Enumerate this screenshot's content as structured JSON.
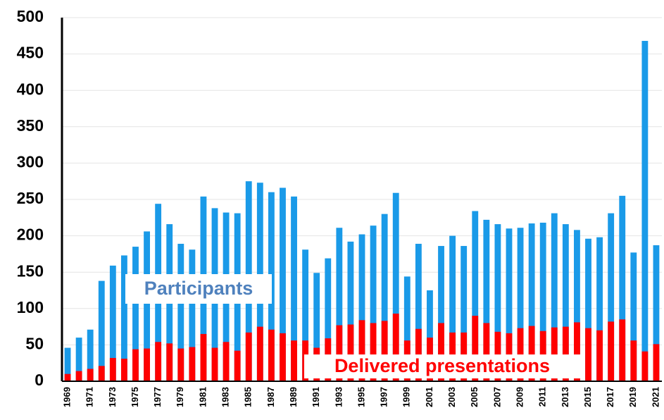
{
  "chart_data": {
    "type": "bar",
    "overlap": true,
    "categories": [
      "1969",
      null,
      "1971",
      null,
      "1973",
      null,
      "1975",
      null,
      "1977",
      null,
      "1979",
      null,
      "1981",
      null,
      "1983",
      null,
      "1985",
      null,
      "1987",
      null,
      "1989",
      null,
      "1991",
      null,
      "1993",
      null,
      "1995",
      null,
      "1997",
      null,
      "1999",
      null,
      "2001",
      null,
      "2003",
      null,
      "2005",
      null,
      "2007",
      null,
      "2009",
      null,
      "2011",
      null,
      "2013",
      null,
      "2015",
      null,
      "2017",
      null,
      "2019",
      null,
      "2021"
    ],
    "series": [
      {
        "name": "Participants",
        "color": "#1a9ae8",
        "values": [
          46,
          60,
          71,
          138,
          159,
          173,
          185,
          206,
          244,
          216,
          189,
          181,
          254,
          238,
          232,
          231,
          275,
          273,
          260,
          266,
          254,
          181,
          149,
          169,
          211,
          192,
          202,
          214,
          230,
          259,
          144,
          189,
          125,
          186,
          200,
          186,
          234,
          222,
          216,
          210,
          211,
          217,
          218,
          231,
          216,
          208,
          196,
          198,
          231,
          255,
          177,
          468,
          187
        ]
      },
      {
        "name": "Delivered presentations",
        "color": "#ff0000",
        "values": [
          10,
          14,
          17,
          21,
          32,
          31,
          44,
          45,
          54,
          52,
          45,
          47,
          65,
          46,
          54,
          42,
          67,
          75,
          71,
          66,
          56,
          56,
          46,
          59,
          77,
          78,
          84,
          80,
          83,
          93,
          56,
          72,
          60,
          80,
          67,
          67,
          90,
          80,
          68,
          66,
          73,
          76,
          69,
          74,
          75,
          81,
          73,
          70,
          82,
          85,
          56,
          41,
          51
        ]
      }
    ],
    "ylim": [
      0,
      500
    ],
    "yticks": [
      0,
      50,
      100,
      150,
      200,
      250,
      300,
      350,
      400,
      450,
      500
    ],
    "grid": true
  }
}
